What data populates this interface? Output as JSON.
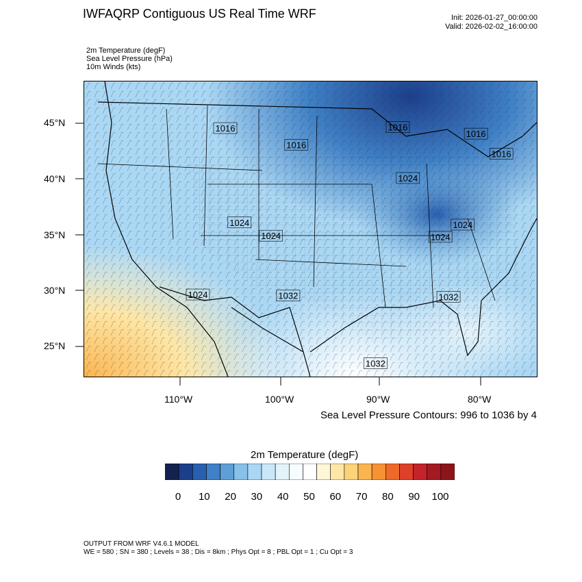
{
  "header": {
    "title": "IWFAQRP Contiguous US Real Time WRF",
    "init": "Init: 2026-01-27_00:00:00",
    "valid": "Valid: 2026-02-02_16:00:00"
  },
  "variables": [
    "2m Temperature   (degF)",
    "Sea Level Pressure   (hPa)",
    "10m Winds   (kts)"
  ],
  "map": {
    "lat_labels": [
      "45°N",
      "40°N",
      "35°N",
      "30°N",
      "25°N"
    ],
    "lon_labels": [
      "110°W",
      "100°W",
      "90°W",
      "80°W"
    ],
    "isobar_labels": [
      {
        "text": "1016",
        "lon": -106.0,
        "lat": 44.5
      },
      {
        "text": "1016",
        "lon": -99.0,
        "lat": 43.0
      },
      {
        "text": "1016",
        "lon": -89.0,
        "lat": 44.6
      },
      {
        "text": "1016",
        "lon": -81.3,
        "lat": 44.0
      },
      {
        "text": "1016",
        "lon": -78.8,
        "lat": 42.2
      },
      {
        "text": "1024",
        "lon": -88.0,
        "lat": 40.0
      },
      {
        "text": "1024",
        "lon": -104.6,
        "lat": 36.0
      },
      {
        "text": "1024",
        "lon": -101.5,
        "lat": 34.8
      },
      {
        "text": "1024",
        "lon": -82.6,
        "lat": 35.8
      },
      {
        "text": "1024",
        "lon": -84.8,
        "lat": 34.7
      },
      {
        "text": "1024",
        "lon": -108.7,
        "lat": 29.5
      },
      {
        "text": "1032",
        "lon": -99.8,
        "lat": 29.4
      },
      {
        "text": "1032",
        "lon": -84.0,
        "lat": 29.3
      },
      {
        "text": "1032",
        "lon": -91.2,
        "lat": 23.3
      }
    ],
    "domain": {
      "lon_min": -119.9,
      "lon_max": -75.3,
      "lat_min": 22.1,
      "lat_max": 48.7
    }
  },
  "contour_note": "Sea Level Pressure Contours: 996 to 1036 by 4",
  "colorbar": {
    "title": "2m Temperature  (degF)",
    "colors": [
      "#14224f",
      "#1c3f8a",
      "#2860b0",
      "#3f80c6",
      "#5d9fd6",
      "#87c0e8",
      "#aad7f4",
      "#c9e7f8",
      "#e4f3fb",
      "#f7fcff",
      "#ffffff",
      "#fff6d6",
      "#fde6a6",
      "#fcd27a",
      "#fbb550",
      "#f79233",
      "#ee6a2a",
      "#df4028",
      "#c4232a",
      "#a51a22",
      "#8c1519"
    ],
    "labels": [
      "0",
      "10",
      "20",
      "30",
      "40",
      "50",
      "60",
      "70",
      "80",
      "90",
      "100"
    ]
  },
  "footer": {
    "line1": "OUTPUT FROM WRF V4.6.1 MODEL",
    "line2": "WE = 580 ; SN = 380 ; Levels = 38 ; Dis = 8km ; Phys Opt = 8 ; PBL Opt = 1 ; Cu Opt = 3"
  }
}
